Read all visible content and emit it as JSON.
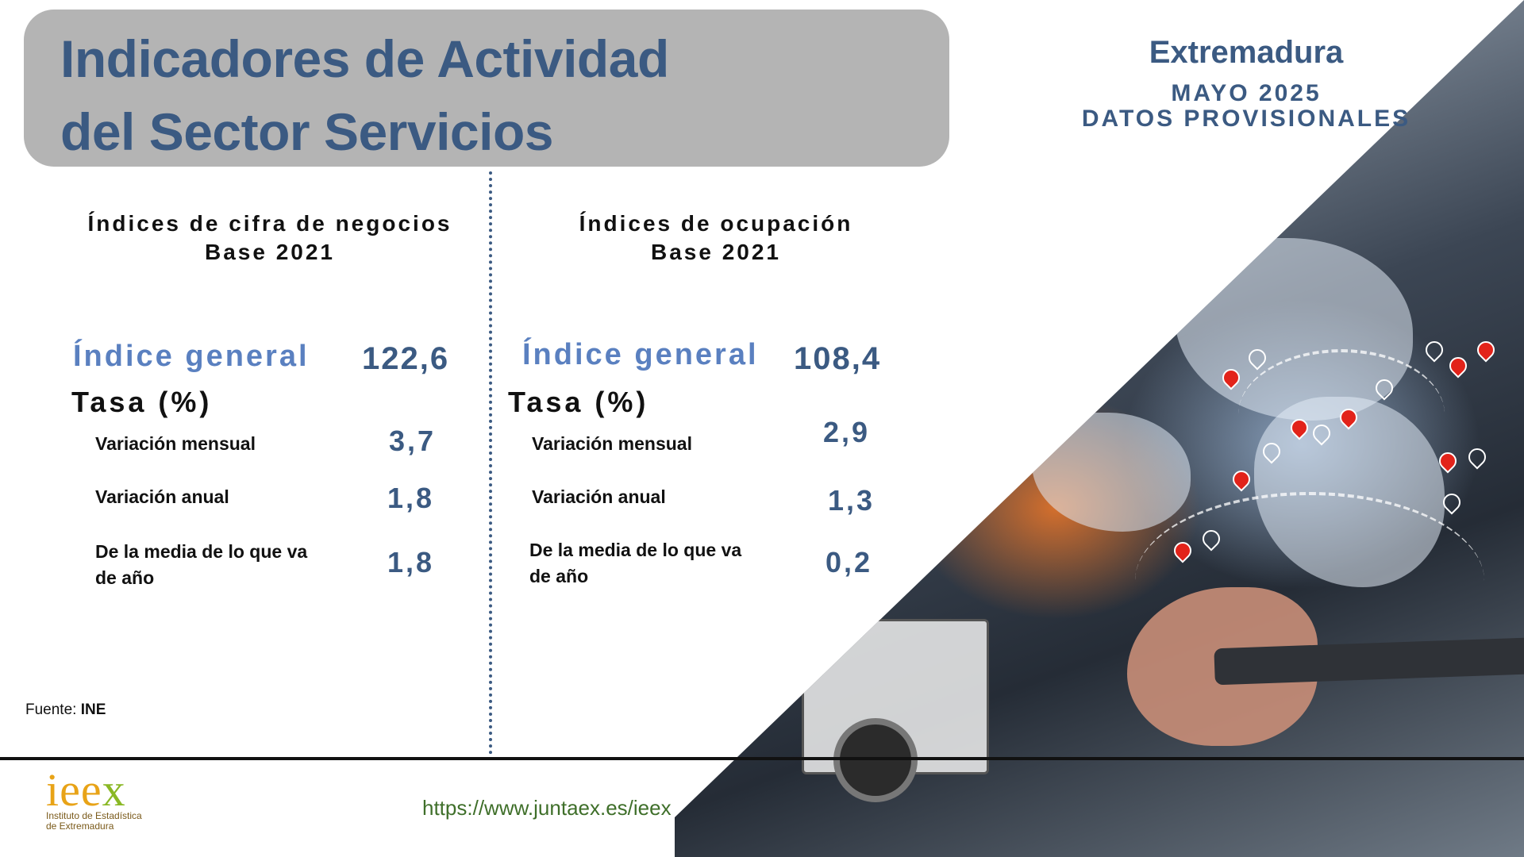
{
  "header": {
    "title_line1": "Indicadores de Actividad",
    "title_line2": "del Sector Servicios",
    "region": "Extremadura",
    "date": "MAYO 2025",
    "status": "DATOS PROVISIONALES"
  },
  "left": {
    "heading_line1": "Índices de cifra de negocios",
    "heading_line2": "Base 2021",
    "general_label": "Índice general",
    "general_value": "122,6",
    "tasa_label": "Tasa (%)",
    "rows": [
      {
        "label": "Variación mensual",
        "value": "3,7"
      },
      {
        "label": "Variación anual",
        "value": "1,8"
      },
      {
        "label": "De la media de lo que va de año",
        "value": "1,8"
      }
    ]
  },
  "right": {
    "heading_line1": "Índices de ocupación",
    "heading_line2": "Base 2021",
    "general_label": "Índice general",
    "general_value": "108,4",
    "tasa_label": "Tasa (%)",
    "rows": [
      {
        "label": "Variación mensual",
        "value": "2,9"
      },
      {
        "label": "Variación anual",
        "value": "1,3"
      },
      {
        "label": "De la media de lo que va de año",
        "value": "0,2"
      }
    ]
  },
  "footer": {
    "source_prefix": "Fuente:",
    "source_name": "INE",
    "url": "https://www.juntaex.es/ieex",
    "logo": {
      "letters_ie": "ie",
      "letters_e": "e",
      "letters_x": "x",
      "line1": "Instituto de Estadística",
      "line2": "de Extremadura"
    }
  },
  "colors": {
    "title_blue": "#3b5a82",
    "index_label_blue": "#5a80c0",
    "header_box_gray": "#b4b4b4",
    "url_green": "#3f6f2a",
    "logo_orange": "#e8a317",
    "logo_green": "#8ab825"
  },
  "icons": [
    "map-pin-icon"
  ]
}
